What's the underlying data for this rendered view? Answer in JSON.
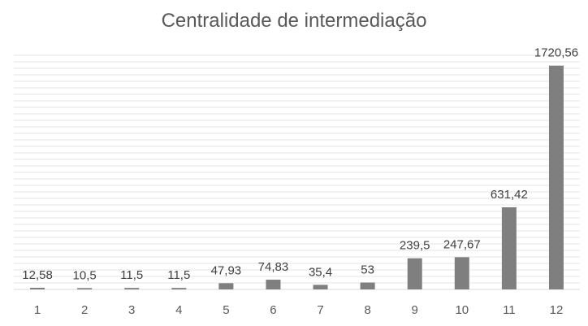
{
  "chart_data": {
    "type": "bar",
    "title": "Centralidade de intermediação",
    "categories": [
      "1",
      "2",
      "3",
      "4",
      "5",
      "6",
      "7",
      "8",
      "9",
      "10",
      "11",
      "12"
    ],
    "values": [
      12.58,
      10.5,
      11.5,
      11.5,
      47.93,
      74.83,
      35.4,
      53,
      239.5,
      247.67,
      631.42,
      1720.56
    ],
    "value_labels": [
      "12,58",
      "10,5",
      "11,5",
      "11,5",
      "47,93",
      "74,83",
      "35,4",
      "53",
      "239,5",
      "247,67",
      "631,42",
      "1720,56"
    ],
    "xlabel": "",
    "ylabel": "",
    "ylim": [
      0,
      1800
    ],
    "grid": true,
    "legend": "none",
    "colors": {
      "bar": "#7f7f7f",
      "grid": "#e6e6e6",
      "text": "#595959"
    }
  }
}
